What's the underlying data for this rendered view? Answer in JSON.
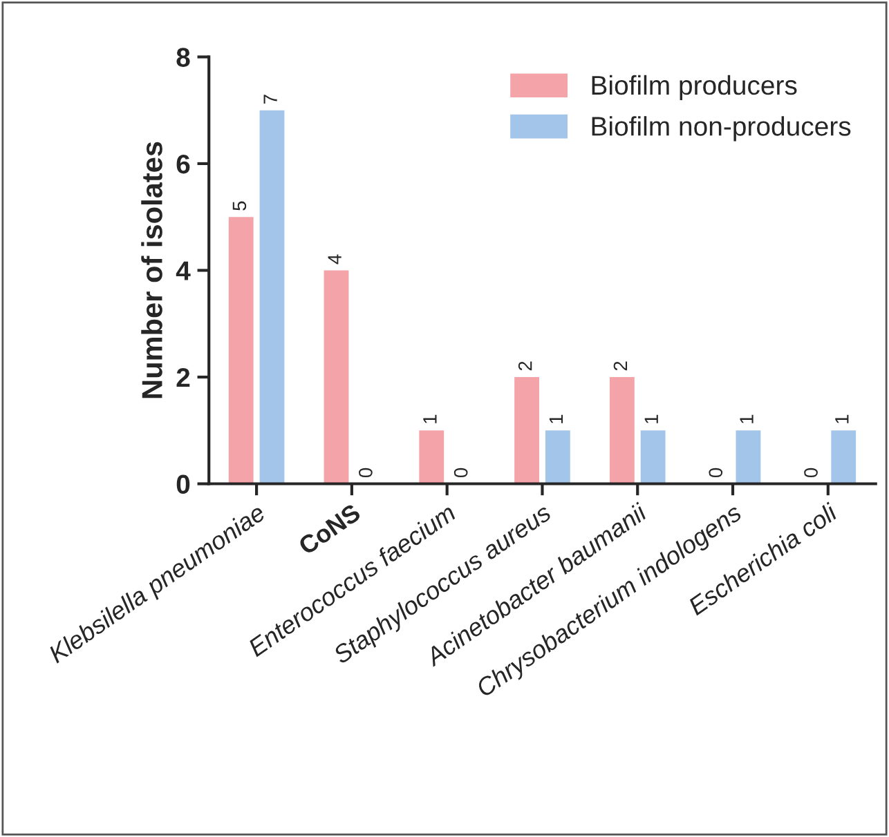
{
  "chart_data": {
    "type": "bar",
    "ylabel": "Number of isolates",
    "categories": [
      "Klebsilella pneumoniae",
      "CoNS",
      "Enterococcus faecium",
      "Staphylococcus aureus",
      "Acinetobacter baumanii",
      "Chrysobacterium indologens",
      "Escherichia coli"
    ],
    "series": [
      {
        "name": "Biofilm producers",
        "color": "#f4a3a8",
        "values": [
          5,
          4,
          1,
          2,
          2,
          0,
          0
        ]
      },
      {
        "name": "Biofilm non-producers",
        "color": "#a3c5ea",
        "values": [
          7,
          0,
          0,
          1,
          1,
          1,
          1
        ]
      }
    ],
    "ylim": [
      0,
      8
    ],
    "yticks": [
      0,
      2,
      4,
      6,
      8
    ],
    "data_labels": true,
    "legend": "top right",
    "grid": false
  }
}
